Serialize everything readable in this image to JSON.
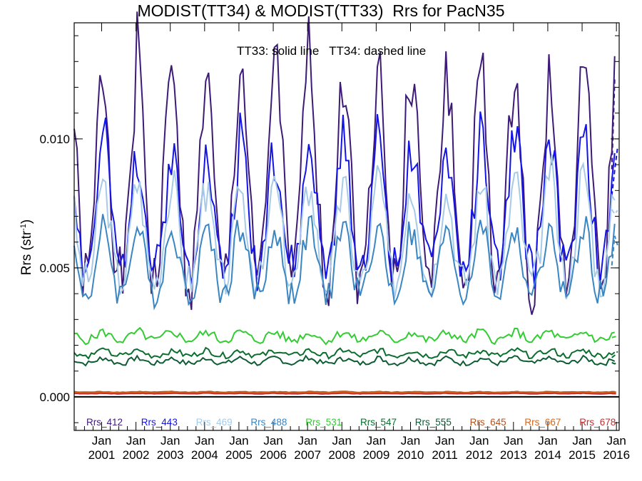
{
  "chart_data": {
    "type": "line",
    "title": "MODIST(TT34) & MODIST(TT33)  Rrs for PacN35",
    "annotation": "TT33: solid line   TT34: dashed line",
    "ylabel_main": "Rrs (str",
    "ylabel_sup": "-1",
    "ylabel_close": ")",
    "ylim": [
      -0.0013,
      0.0145
    ],
    "yticks": [
      0.0,
      0.005,
      0.01
    ],
    "ytick_labels": [
      "0.000",
      "0.005",
      "0.010"
    ],
    "xlim": [
      2000.2,
      2016.08
    ],
    "xticks": [
      2001,
      2002,
      2003,
      2004,
      2005,
      2006,
      2007,
      2008,
      2009,
      2010,
      2011,
      2012,
      2013,
      2014,
      2015,
      2016
    ],
    "xtick_month": "Jan",
    "xtick_years": [
      "2001",
      "2002",
      "2003",
      "2004",
      "2005",
      "2006",
      "2007",
      "2008",
      "2009",
      "2010",
      "2011",
      "2012",
      "2013",
      "2014",
      "2015",
      "2016"
    ],
    "grid": false,
    "legend_position": "bottom, inside plot",
    "series": [
      {
        "name": "Rrs_412",
        "color": "#3d1a78",
        "amp": 0.0084,
        "base": 0.0045,
        "seed": 1
      },
      {
        "name": "Rrs_443",
        "color": "#1414e6",
        "amp": 0.0048,
        "base": 0.005,
        "seed": 2
      },
      {
        "name": "Rrs_469",
        "color": "#a6cbe8",
        "amp": 0.0039,
        "base": 0.0045,
        "seed": 3
      },
      {
        "name": "Rrs_488",
        "color": "#3a86c3",
        "amp": 0.0025,
        "base": 0.004,
        "seed": 4
      },
      {
        "name": "Rrs_531",
        "color": "#33cc33",
        "amp": 0.0003,
        "base": 0.0022,
        "seed": 5
      },
      {
        "name": "Rrs_547",
        "color": "#0b6e2e",
        "amp": 0.0002,
        "base": 0.0016,
        "seed": 6
      },
      {
        "name": "Rrs_555",
        "color": "#0e5c34",
        "amp": 0.0002,
        "base": 0.0013,
        "seed": 7
      },
      {
        "name": "Rrs_645",
        "color": "#b5531e",
        "amp": 2e-05,
        "base": 0.00018,
        "seed": 8
      },
      {
        "name": "Rrs_667",
        "color": "#d9661a",
        "amp": 2e-05,
        "base": 0.00015,
        "seed": 9
      },
      {
        "name": "Rrs_678",
        "color": "#c42f2f",
        "amp": 2e-05,
        "base": 0.00012,
        "seed": 10
      }
    ]
  }
}
